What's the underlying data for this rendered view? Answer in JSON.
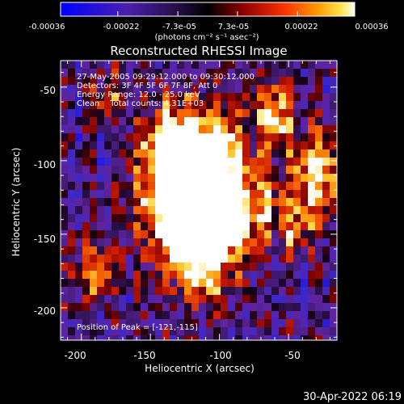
{
  "chart_data": {
    "type": "heatmap",
    "title": "Reconstructed RHESSI Image",
    "xlabel": "Heliocentric X (arcsec)",
    "ylabel": "Heliocentric Y (arcsec)",
    "xlim": [
      -215,
      -15
    ],
    "ylim": [
      -222,
      -32
    ],
    "x_ticks": [
      -200,
      -150,
      -100,
      -50
    ],
    "y_ticks": [
      -200,
      -150,
      -100,
      -50
    ],
    "colorbar": {
      "ticks": [
        "-0.00036",
        "-0.00022",
        "-7.3e-05",
        "7.3e-05",
        "0.00022",
        "0.00036"
      ],
      "tick_values": [
        -0.00036,
        -0.00022,
        -7.3e-05,
        7.3e-05,
        0.00022,
        0.00036
      ],
      "range": [
        -0.00036,
        0.00036
      ],
      "unit_label": "(photons cm⁻² s⁻¹ asec⁻²)"
    },
    "annotations": [
      "27-May-2005 09:29:12.000 to 09:30:12.000",
      "Detectors: 3F 4F 5F 6F 7F 8F, Att 0",
      "Energy Range: 12.0 - 25.0 keV",
      "Clean    Total counts: 4.31E+03"
    ],
    "peak_label": "Position of Peak = [-121,-115]",
    "peak": [
      -121,
      -115
    ],
    "colormap": [
      "#0000ff",
      "#5a1e9a",
      "#3a1868",
      "#000000",
      "#7a0000",
      "#d01800",
      "#ff7a00",
      "#ffd23a",
      "#ffffff"
    ]
  },
  "footer": {
    "date": "30-Apr-2022 06:19"
  }
}
